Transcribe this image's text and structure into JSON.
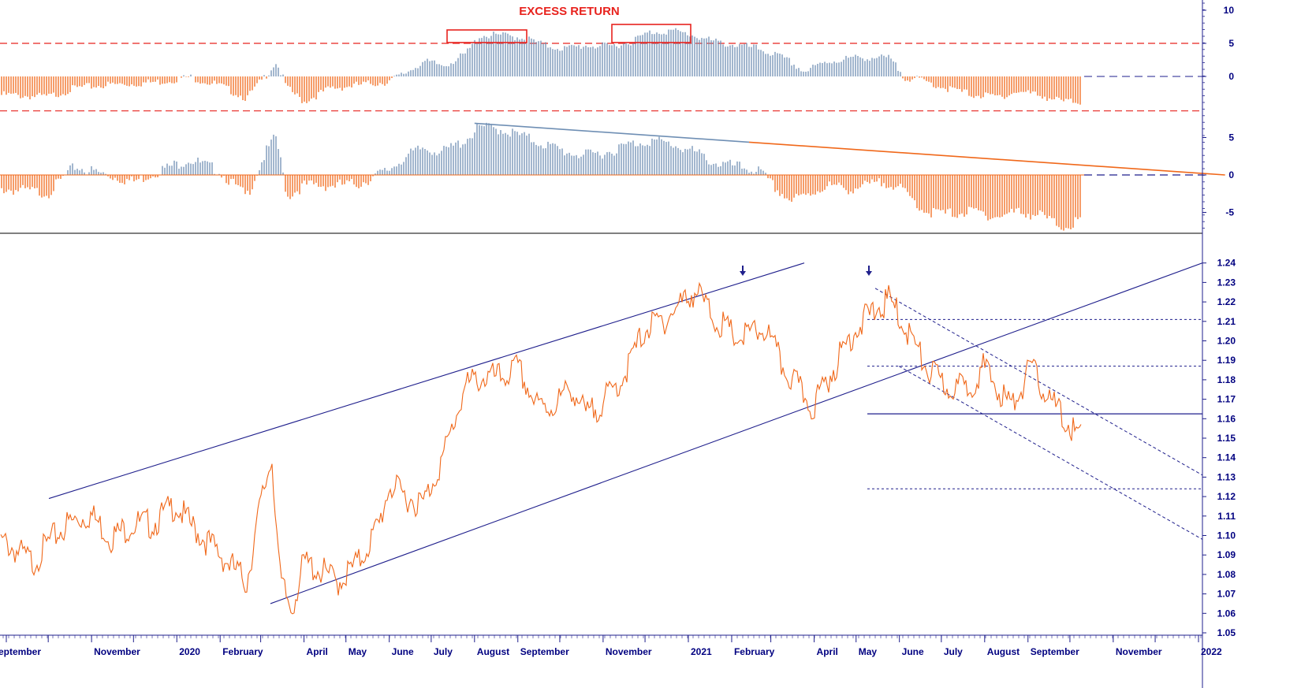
{
  "chart_data": [
    {
      "type": "bar",
      "panel": "top",
      "title": "EXCESS RETURN",
      "ylim": [
        -5,
        11
      ],
      "ticks": [
        "10",
        "5",
        "0"
      ],
      "tick_values": [
        10,
        5,
        0
      ],
      "reference_lines": [
        5,
        0,
        -5
      ],
      "series": [
        {
          "x": [
            "2019-09-01",
            "2019-10-01",
            "2019-10-20",
            "2019-11-10",
            "2019-12-01",
            "2019-12-20",
            "2020-01-10",
            "2020-01-31",
            "2020-02-20",
            "2020-02-28",
            "2020-03-05",
            "2020-03-12",
            "2020-03-20",
            "2020-04-01",
            "2020-04-20",
            "2020-05-10",
            "2020-05-31",
            "2020-06-10",
            "2020-06-25",
            "2020-07-10",
            "2020-07-25",
            "2020-08-05",
            "2020-08-20",
            "2020-09-05",
            "2020-09-20",
            "2020-10-05",
            "2020-10-20",
            "2020-11-05",
            "2020-11-20",
            "2020-12-05",
            "2020-12-20",
            "2021-01-05",
            "2021-01-20",
            "2021-02-05",
            "2021-02-20",
            "2021-03-05",
            "2021-03-15",
            "2021-03-25",
            "2021-04-10",
            "2021-04-25",
            "2021-05-10",
            "2021-05-25",
            "2021-06-05",
            "2021-06-20",
            "2021-07-05",
            "2021-07-25",
            "2021-08-10",
            "2021-08-25",
            "2021-09-10",
            "2021-09-25",
            "2021-10-05",
            "2021-10-12"
          ],
          "values": [
            -2.5,
            -2.8,
            -1.5,
            -1.0,
            -0.8,
            -0.5,
            0.2,
            -1.0,
            -3.0,
            -1.0,
            0.5,
            2.5,
            -1.5,
            -3.5,
            -1.5,
            -1.0,
            -0.5,
            0.5,
            2.5,
            2.0,
            3.5,
            6.5,
            6.5,
            6.2,
            5.0,
            4.5,
            5.0,
            4.8,
            5.5,
            7.0,
            7.2,
            6.5,
            5.5,
            5.0,
            4.5,
            3.5,
            2.5,
            1.0,
            2.5,
            3.0,
            3.2,
            3.0,
            0.2,
            -0.5,
            -1.5,
            -2.5,
            -2.8,
            -2.0,
            -2.5,
            -3.5,
            -3.5,
            -3.5
          ]
        }
      ],
      "annotations": [
        "red box August 2020",
        "red box December 2020"
      ]
    },
    {
      "type": "bar",
      "panel": "middle",
      "ylim": [
        -8,
        9
      ],
      "ticks": [
        "5",
        "0",
        "-5"
      ],
      "tick_values": [
        5,
        0,
        -5
      ],
      "series": [
        {
          "x": [
            "2019-09-01",
            "2019-10-01",
            "2019-10-20",
            "2019-11-10",
            "2019-12-01",
            "2019-12-20",
            "2020-01-10",
            "2020-01-31",
            "2020-02-20",
            "2020-02-28",
            "2020-03-05",
            "2020-03-12",
            "2020-03-20",
            "2020-04-01",
            "2020-04-20",
            "2020-05-10",
            "2020-05-31",
            "2020-06-10",
            "2020-06-25",
            "2020-07-10",
            "2020-07-25",
            "2020-08-05",
            "2020-08-20",
            "2020-09-05",
            "2020-09-20",
            "2020-10-05",
            "2020-10-20",
            "2020-11-05",
            "2020-11-20",
            "2020-12-05",
            "2020-12-20",
            "2021-01-05",
            "2021-01-20",
            "2021-02-05",
            "2021-02-20",
            "2021-03-05",
            "2021-03-15",
            "2021-03-25",
            "2021-04-10",
            "2021-04-25",
            "2021-05-10",
            "2021-05-25",
            "2021-06-05",
            "2021-06-20",
            "2021-07-05",
            "2021-07-25",
            "2021-08-10",
            "2021-08-25",
            "2021-09-10",
            "2021-09-25",
            "2021-10-05",
            "2021-10-12"
          ],
          "values": [
            -1.5,
            -2.0,
            1.5,
            0.5,
            -0.5,
            1.0,
            2.5,
            1.0,
            -2.5,
            1.0,
            3.5,
            5.5,
            -2.5,
            -1.0,
            -1.0,
            -0.8,
            1.0,
            2.5,
            4.0,
            3.5,
            5.0,
            6.8,
            6.5,
            5.5,
            4.5,
            3.5,
            3.0,
            3.5,
            4.5,
            5.0,
            4.5,
            3.5,
            2.0,
            1.5,
            1.0,
            -1.5,
            -3.0,
            -2.5,
            -1.0,
            -1.5,
            -1.0,
            -0.5,
            -2.0,
            -4.5,
            -4.8,
            -4.5,
            -5.2,
            -4.5,
            -5.0,
            -6.5,
            -6.0,
            -5.5
          ]
        }
      ],
      "trendline": [
        [
          "2020-08-01",
          6.9
        ],
        [
          "2022-01-20",
          0.0
        ]
      ]
    },
    {
      "type": "line",
      "panel": "price",
      "ylim": [
        1.05,
        1.245
      ],
      "ticks": [
        "1.24",
        "1.23",
        "1.22",
        "1.21",
        "1.20",
        "1.19",
        "1.18",
        "1.17",
        "1.16",
        "1.15",
        "1.14",
        "1.13",
        "1.12",
        "1.11",
        "1.10",
        "1.09",
        "1.08",
        "1.07",
        "1.06",
        "1.05"
      ],
      "tick_values": [
        1.24,
        1.23,
        1.22,
        1.21,
        1.2,
        1.19,
        1.18,
        1.17,
        1.16,
        1.15,
        1.14,
        1.13,
        1.12,
        1.11,
        1.1,
        1.09,
        1.08,
        1.07,
        1.06,
        1.05
      ],
      "x_labels": [
        "eptember",
        "November",
        "2020",
        "February",
        "April",
        "May",
        "June",
        "July",
        "August",
        "September",
        "November",
        "2021",
        "February",
        "April",
        "May",
        "June",
        "July",
        "August",
        "September",
        "November",
        "2022"
      ],
      "x_label_dates": [
        "2019-09-01",
        "2019-11-01",
        "2020-01-01",
        "2020-02-01",
        "2020-04-01",
        "2020-05-01",
        "2020-06-01",
        "2020-07-01",
        "2020-08-01",
        "2020-09-01",
        "2020-11-01",
        "2021-01-01",
        "2021-02-01",
        "2021-04-01",
        "2021-05-01",
        "2021-06-01",
        "2021-07-01",
        "2021-08-01",
        "2021-09-01",
        "2021-11-01",
        "2022-01-01"
      ],
      "series": [
        {
          "x": [
            "2019-09-01",
            "2019-09-20",
            "2019-10-01",
            "2019-10-15",
            "2019-10-31",
            "2019-11-15",
            "2019-12-01",
            "2019-12-15",
            "2019-12-31",
            "2020-01-10",
            "2020-01-31",
            "2020-02-20",
            "2020-03-01",
            "2020-03-09",
            "2020-03-15",
            "2020-03-23",
            "2020-04-01",
            "2020-04-15",
            "2020-04-25",
            "2020-05-10",
            "2020-05-25",
            "2020-06-01",
            "2020-06-10",
            "2020-06-25",
            "2020-07-10",
            "2020-07-25",
            "2020-08-05",
            "2020-08-20",
            "2020-09-01",
            "2020-09-15",
            "2020-09-25",
            "2020-10-10",
            "2020-10-20",
            "2020-11-04",
            "2020-11-15",
            "2020-12-01",
            "2020-12-15",
            "2021-01-06",
            "2021-01-20",
            "2021-02-05",
            "2021-02-25",
            "2021-03-10",
            "2021-03-31",
            "2021-04-15",
            "2021-04-30",
            "2021-05-15",
            "2021-05-25",
            "2021-06-10",
            "2021-06-20",
            "2021-07-05",
            "2021-07-20",
            "2021-07-31",
            "2021-08-15",
            "2021-08-20",
            "2021-09-03",
            "2021-09-20",
            "2021-10-01",
            "2021-10-06",
            "2021-10-15",
            "2021-10-20"
          ],
          "values": [
            1.1,
            1.09,
            1.1,
            1.11,
            1.115,
            1.103,
            1.11,
            1.11,
            1.12,
            1.11,
            1.095,
            1.08,
            1.12,
            1.145,
            1.08,
            1.066,
            1.09,
            1.085,
            1.08,
            1.09,
            1.11,
            1.13,
            1.125,
            1.12,
            1.145,
            1.18,
            1.185,
            1.185,
            1.19,
            1.17,
            1.17,
            1.18,
            1.165,
            1.175,
            1.185,
            1.21,
            1.215,
            1.23,
            1.215,
            1.205,
            1.21,
            1.19,
            1.17,
            1.19,
            1.21,
            1.22,
            1.225,
            1.205,
            1.19,
            1.18,
            1.18,
            1.19,
            1.175,
            1.17,
            1.19,
            1.17,
            1.16,
            1.155,
            1.165,
            1.16
          ]
        }
      ],
      "annotations": [
        "arrow 2021-02-25",
        "arrow 2021-05-25"
      ]
    }
  ]
}
